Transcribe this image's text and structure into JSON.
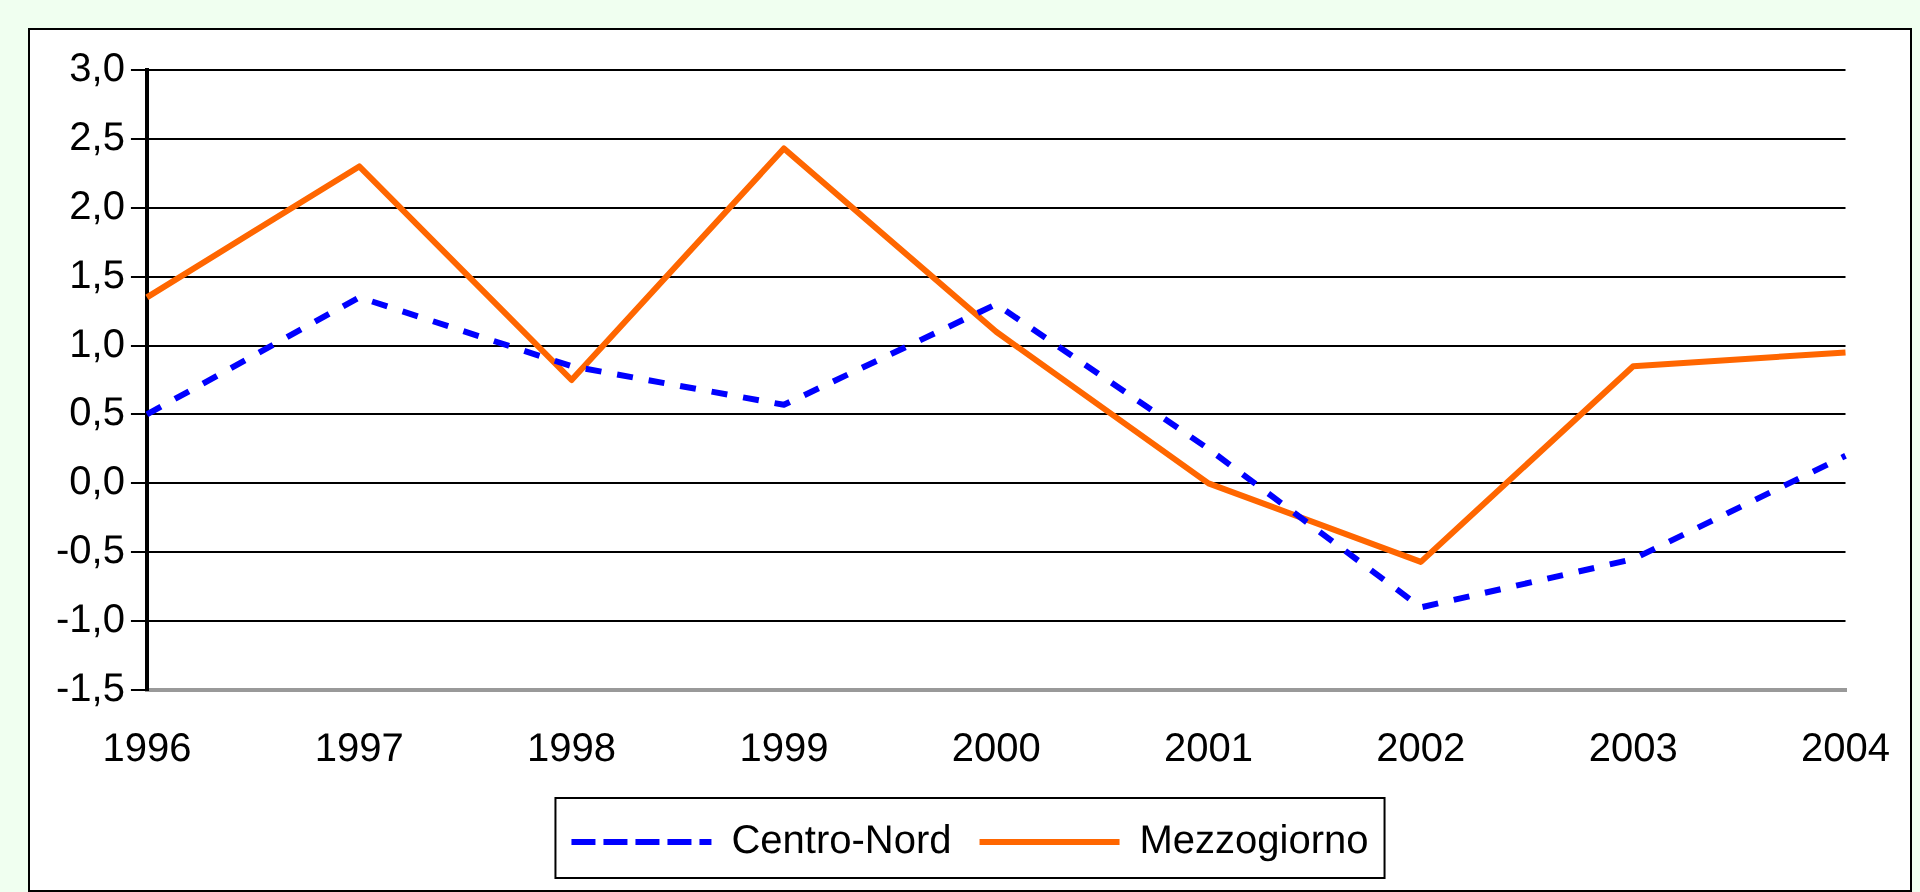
{
  "chart_data": {
    "type": "line",
    "categories": [
      "1996",
      "1997",
      "1998",
      "1999",
      "2000",
      "2001",
      "2002",
      "2003",
      "2004"
    ],
    "series": [
      {
        "name": "Centro-Nord",
        "color": "#0000ff",
        "line_style": "dashed",
        "values": [
          0.5,
          1.35,
          0.85,
          0.57,
          1.3,
          0.25,
          -0.9,
          -0.55,
          0.2
        ]
      },
      {
        "name": "Mezzogiorno",
        "color": "#ff6600",
        "line_style": "solid",
        "values": [
          1.35,
          2.3,
          0.75,
          2.43,
          1.1,
          0.0,
          -0.57,
          0.85,
          0.95
        ]
      }
    ],
    "ylim": [
      -1.5,
      3.0
    ],
    "yticks": [
      {
        "value": -1.5,
        "label": "-1,5"
      },
      {
        "value": -1.0,
        "label": "-1,0"
      },
      {
        "value": -0.5,
        "label": "-0,5"
      },
      {
        "value": 0,
        "label": "0,0"
      },
      {
        "value": 0.5,
        "label": "0,5"
      },
      {
        "value": 1.0,
        "label": "1,0"
      },
      {
        "value": 1.5,
        "label": "1,5"
      },
      {
        "value": 2.0,
        "label": "2,0"
      },
      {
        "value": 2.5,
        "label": "2,5"
      },
      {
        "value": 3.0,
        "label": "3,0"
      }
    ],
    "grid": "y",
    "legend": "bottom",
    "marker": "none"
  }
}
